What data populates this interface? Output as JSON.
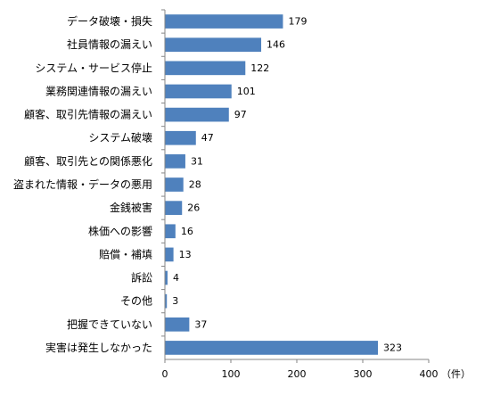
{
  "chart_data": {
    "type": "bar",
    "orientation": "horizontal",
    "categories": [
      "データ破壊・損失",
      "社員情報の漏えい",
      "システム・サービス停止",
      "業務関連情報の漏えい",
      "顧客、取引先情報の漏えい",
      "システム破壊",
      "顧客、取引先との関係悪化",
      "盗まれた情報・データの悪用",
      "金銭被害",
      "株価への影響",
      "賠償・補填",
      "訴訟",
      "その他",
      "把握できていない",
      "実害は発生しなかった"
    ],
    "values": [
      179,
      146,
      122,
      101,
      97,
      47,
      31,
      28,
      26,
      16,
      13,
      4,
      3,
      37,
      323
    ],
    "xlim": [
      0,
      400
    ],
    "xticks": [
      0,
      100,
      200,
      300,
      400
    ],
    "unit": "（件）",
    "bar_color": "#4F81BD",
    "grid": false,
    "legend": "none"
  }
}
